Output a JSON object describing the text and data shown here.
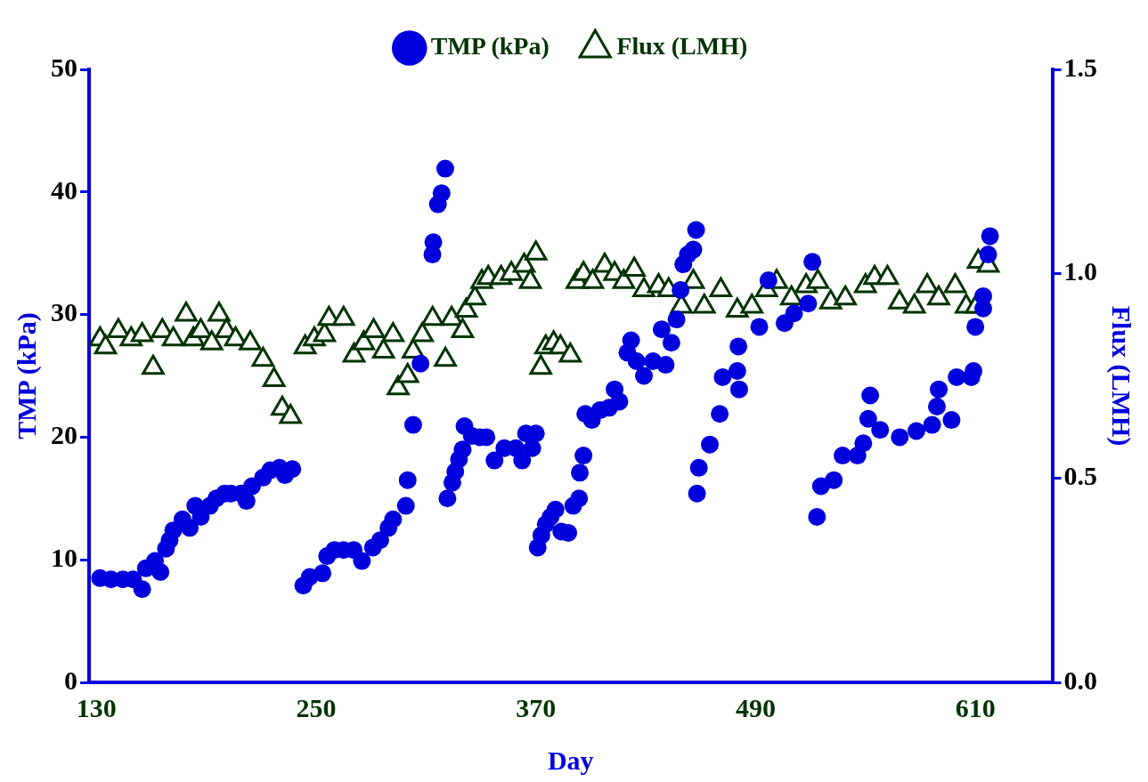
{
  "chart_data": {
    "type": "scatter",
    "xlabel": "Day",
    "ylabel": "TMP (kPa)",
    "y2label": "Flux (LMH)",
    "legend": "top",
    "grid": false,
    "xlim": [
      126,
      652
    ],
    "xticks": [
      130,
      250,
      370,
      490,
      610
    ],
    "ylim": [
      0,
      50
    ],
    "yticks": [
      0,
      10,
      20,
      30,
      40,
      50
    ],
    "y2lim": [
      0,
      1.5
    ],
    "y2ticks": [
      {
        "value": 0,
        "label": "0.0"
      },
      {
        "value": 0.5,
        "label": "0.5"
      },
      {
        "value": 1,
        "label": "1.0"
      },
      {
        "value": 1.5,
        "label": "1.5"
      }
    ],
    "series": [
      {
        "name": "TMP (kPa)",
        "color": "#0000dd",
        "marker": "circle",
        "x": [
          132,
          138,
          144.5,
          150,
          155,
          157,
          162,
          165,
          168,
          170,
          172,
          177,
          181,
          184,
          187,
          192,
          195.5,
          200,
          203.5,
          209,
          212,
          215,
          221,
          225,
          230,
          233,
          237,
          243,
          246.5,
          253.5,
          256,
          260,
          265,
          270.5,
          275,
          281,
          285,
          289.5,
          292,
          299,
          300,
          303,
          307,
          313.5,
          314,
          316.5,
          318.5,
          320.5,
          321.7,
          324.4,
          326,
          328,
          330,
          331,
          335,
          339.4,
          343,
          347.4,
          352.8,
          359,
          362.5,
          364.6,
          368,
          370,
          371,
          373,
          375.4,
          378,
          380.7,
          383.9,
          387.7,
          390.4,
          393.6,
          394,
          396,
          397,
          400.6,
          405,
          410,
          413,
          415.6,
          420,
          422,
          425,
          429,
          434,
          438.7,
          440.9,
          444,
          446.8,
          449,
          450.5,
          453,
          456,
          457.5,
          458,
          459,
          465,
          470.4,
          472,
          481,
          480,
          480.6,
          492,
          497,
          505.8,
          511,
          521,
          518.7,
          523.5,
          525.7,
          532.7,
          537.5,
          545.6,
          548.8,
          552.6,
          551.5,
          558,
          568.7,
          577.8,
          586.4,
          589,
          590,
          597,
          599.8,
          607.8,
          609,
          610,
          614.3,
          614.3,
          618,
          617
        ],
        "values": [
          8.5,
          8.4,
          8.4,
          8.4,
          7.6,
          9.3,
          9.9,
          9.0,
          10.9,
          11.6,
          12.4,
          13.3,
          12.6,
          14.4,
          13.5,
          14.4,
          15.0,
          15.4,
          15.4,
          15.4,
          14.8,
          16.0,
          16.7,
          17.3,
          17.5,
          16.9,
          17.4,
          7.9,
          8.6,
          8.9,
          10.3,
          10.8,
          10.8,
          10.8,
          9.9,
          11.0,
          11.6,
          12.6,
          13.3,
          14.4,
          16.5,
          21.0,
          26.0,
          34.9,
          35.9,
          39.0,
          39.9,
          41.9,
          15.0,
          16.3,
          17.2,
          18.2,
          19.0,
          20.9,
          20.1,
          20.0,
          20.0,
          18.1,
          19.1,
          19.1,
          18.1,
          20.3,
          19.1,
          20.3,
          11.0,
          12.0,
          12.9,
          13.5,
          14.1,
          12.3,
          12.2,
          14.4,
          15.0,
          17.1,
          18.5,
          21.9,
          21.4,
          22.2,
          22.4,
          23.9,
          22.9,
          26.9,
          27.9,
          26.2,
          25.0,
          26.2,
          28.8,
          25.9,
          27.7,
          29.6,
          32.0,
          34.1,
          34.9,
          35.3,
          36.9,
          15.4,
          17.5,
          19.4,
          21.9,
          24.9,
          23.9,
          25.4,
          27.4,
          29.0,
          32.8,
          29.3,
          30.1,
          34.3,
          30.9,
          13.5,
          16.0,
          16.5,
          18.5,
          18.5,
          19.5,
          23.4,
          21.5,
          20.6,
          20.0,
          20.5,
          21.0,
          22.5,
          23.9,
          21.4,
          24.9,
          24.9,
          25.4,
          29.0,
          30.5,
          31.5,
          36.4,
          34.9
        ]
      },
      {
        "name": "Flux (LMH)",
        "color": "#003300",
        "marker": "triangle",
        "axis": "y2",
        "x": [
          132,
          135,
          142,
          149,
          155,
          161,
          166,
          172,
          179,
          183,
          187,
          193,
          197,
          201,
          206,
          214,
          221,
          227,
          231.5,
          236,
          244,
          249,
          254.6,
          257,
          265,
          270.7,
          276,
          281.4,
          286.8,
          292,
          294.8,
          300,
          303,
          308,
          313.6,
          320.6,
          324,
          330,
          332,
          336.7,
          340.5,
          344,
          351,
          356.6,
          363.6,
          367,
          370,
          372.7,
          375.4,
          379.7,
          383.4,
          388.8,
          392.5,
          396,
          401,
          407.6,
          413,
          418,
          423.7,
          429,
          437,
          442.5,
          449.5,
          456,
          462,
          471,
          480,
          488,
          496,
          501.5,
          509.6,
          517.6,
          524,
          531,
          539,
          550,
          555,
          562,
          568.6,
          576.7,
          583.7,
          590,
          599,
          605,
          610.5,
          611.6,
          617
        ],
        "values": [
          0.84,
          0.82,
          0.86,
          0.84,
          0.85,
          0.77,
          0.86,
          0.84,
          0.9,
          0.84,
          0.86,
          0.83,
          0.9,
          0.86,
          0.84,
          0.83,
          0.79,
          0.74,
          0.67,
          0.65,
          0.82,
          0.84,
          0.85,
          0.89,
          0.89,
          0.8,
          0.83,
          0.86,
          0.81,
          0.85,
          0.72,
          0.75,
          0.81,
          0.85,
          0.89,
          0.79,
          0.89,
          0.86,
          0.91,
          0.94,
          0.98,
          0.99,
          0.99,
          1.0,
          1.02,
          0.98,
          1.05,
          0.77,
          0.82,
          0.83,
          0.82,
          0.8,
          0.98,
          1.0,
          0.98,
          1.02,
          1.0,
          0.98,
          1.01,
          0.96,
          0.97,
          0.96,
          0.92,
          0.98,
          0.92,
          0.96,
          0.91,
          0.92,
          0.96,
          0.98,
          0.94,
          0.97,
          0.98,
          0.93,
          0.94,
          0.97,
          0.99,
          0.99,
          0.93,
          0.92,
          0.97,
          0.94,
          0.97,
          0.92,
          0.92,
          1.03,
          1.02
        ]
      }
    ]
  }
}
